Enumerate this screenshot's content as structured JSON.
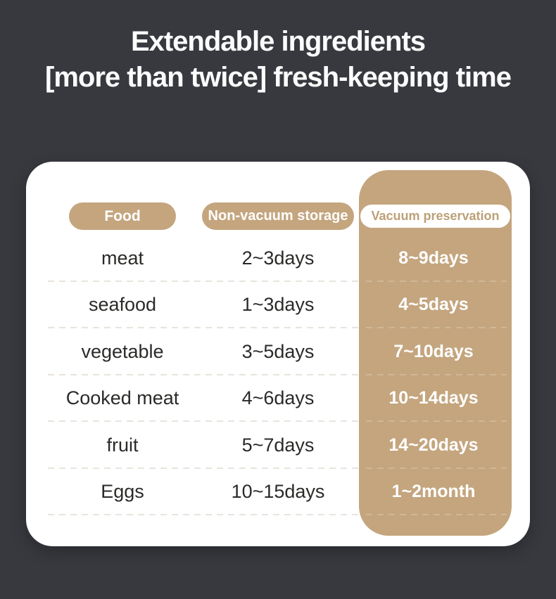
{
  "colors": {
    "background": "#37393f",
    "card": "#ffffff",
    "tan": "#c4a57e",
    "tan_text": "#bda077",
    "dark_text": "#2b2a28",
    "sep_light": "#e8e4dd",
    "sep_tan": "#d1b795",
    "title_text": "#fcfcfc"
  },
  "title": {
    "line1": "Extendable ingredients",
    "line2": "[more than twice] fresh-keeping time"
  },
  "chart_data": {
    "type": "table",
    "title": "Extendable ingredients [more than twice] fresh-keeping time",
    "columns": [
      "Food",
      "Non-vacuum storage",
      "Vacuum preservation"
    ],
    "highlight_column": "Vacuum preservation",
    "rows": [
      [
        "meat",
        "2~3days",
        "8~9days"
      ],
      [
        "seafood",
        "1~3days",
        "4~5days"
      ],
      [
        "vegetable",
        "3~5days",
        "7~10days"
      ],
      [
        "Cooked meat",
        "4~6days",
        "10~14days"
      ],
      [
        "fruit",
        "5~7days",
        "14~20days"
      ],
      [
        "Eggs",
        "10~15days",
        "1~2month"
      ]
    ]
  }
}
